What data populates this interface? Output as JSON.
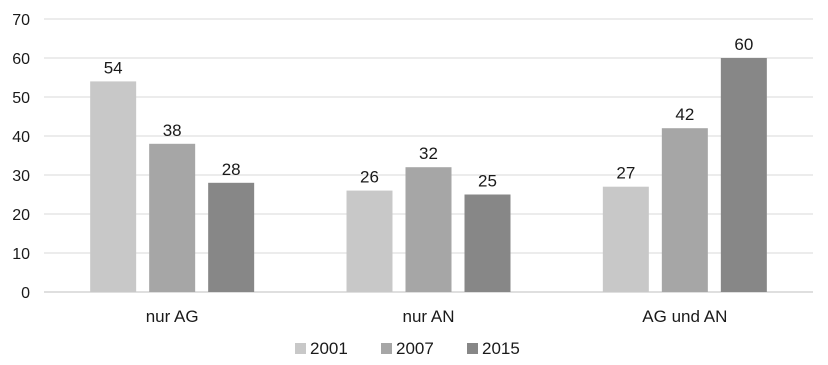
{
  "chart_data": {
    "type": "bar",
    "categories": [
      "nur AG",
      "nur AN",
      "AG und AN"
    ],
    "series": [
      {
        "name": "2001",
        "values": [
          54,
          26,
          27
        ],
        "color": "#c8c8c8"
      },
      {
        "name": "2007",
        "values": [
          38,
          32,
          42
        ],
        "color": "#a6a6a6"
      },
      {
        "name": "2015",
        "values": [
          28,
          25,
          60
        ],
        "color": "#878787"
      }
    ],
    "yticks": [
      "0",
      "10",
      "20",
      "30",
      "40",
      "50",
      "60",
      "70"
    ],
    "ylim": [
      0,
      70
    ],
    "grid": true,
    "legend_position": "bottom",
    "title": "",
    "xlabel": "",
    "ylabel": ""
  }
}
